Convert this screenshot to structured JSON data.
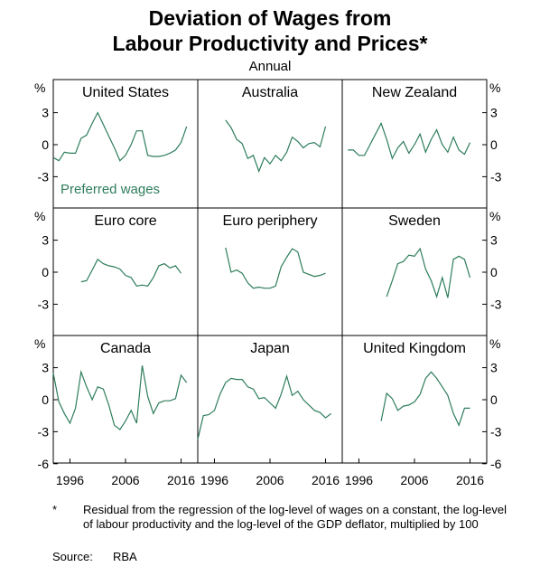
{
  "title_line1": "Deviation of Wages from",
  "title_line2": "Labour Productivity and Prices*",
  "subtitle": "Annual",
  "footnote_marker": "*",
  "footnote": "Residual from the regression of the log-level of wages on a constant, the log-level of labour productivity and the log-level of the GDP deflator, multiplied by 100",
  "source_label": "Source:",
  "source": "RBA",
  "chart_data": {
    "type": "line",
    "unit": "%",
    "line_color": "#2e7d5b",
    "ylim": [
      -6,
      6
    ],
    "y_ticks_rows_top_mid": [
      3,
      0,
      -3
    ],
    "y_ticks_bottom_row": [
      3,
      0,
      -3,
      -6
    ],
    "xlim": [
      1993,
      2019
    ],
    "x_ticks": [
      1996,
      2006,
      2016
    ],
    "legend": "Preferred wages",
    "panels": [
      {
        "name": "United States",
        "x": [
          1993,
          1994,
          1995,
          1996,
          1997,
          1998,
          1999,
          2000,
          2001,
          2002,
          2003,
          2004,
          2005,
          2006,
          2007,
          2008,
          2009,
          2010,
          2011,
          2012,
          2013,
          2014,
          2015,
          2016,
          2017
        ],
        "y": [
          -1.2,
          -1.5,
          -0.7,
          -0.8,
          -0.8,
          0.6,
          0.9,
          2.0,
          3.0,
          1.9,
          0.8,
          -0.3,
          -1.5,
          -1.0,
          0.0,
          1.3,
          1.3,
          -1.0,
          -1.1,
          -1.1,
          -1.0,
          -0.8,
          -0.5,
          0.2,
          1.7
        ]
      },
      {
        "name": "Australia",
        "x": [
          1998,
          1999,
          2000,
          2001,
          2002,
          2003,
          2004,
          2005,
          2006,
          2007,
          2008,
          2009,
          2010,
          2011,
          2012,
          2013,
          2014,
          2015,
          2016
        ],
        "y": [
          2.3,
          1.6,
          0.5,
          0.1,
          -1.3,
          -1.0,
          -2.5,
          -1.2,
          -1.8,
          -1.0,
          -1.5,
          -0.7,
          0.7,
          0.3,
          -0.3,
          0.1,
          0.2,
          -0.2,
          1.7
        ]
      },
      {
        "name": "New Zealand",
        "x": [
          1994,
          1995,
          1996,
          1997,
          1998,
          1999,
          2000,
          2001,
          2002,
          2003,
          2004,
          2005,
          2006,
          2007,
          2008,
          2009,
          2010,
          2011,
          2012,
          2013,
          2014,
          2015,
          2016
        ],
        "y": [
          -0.5,
          -0.5,
          -1.0,
          -1.0,
          0.0,
          1.0,
          2.0,
          0.5,
          -1.3,
          -0.3,
          0.3,
          -0.8,
          0.0,
          1.0,
          -0.7,
          0.5,
          1.4,
          0.0,
          -0.7,
          0.7,
          -0.5,
          -0.9,
          0.2
        ]
      },
      {
        "name": "Euro core",
        "x": [
          1998,
          1999,
          2000,
          2001,
          2002,
          2003,
          2004,
          2005,
          2006,
          2007,
          2008,
          2009,
          2010,
          2011,
          2012,
          2013,
          2014,
          2015,
          2016
        ],
        "y": [
          -0.9,
          -0.8,
          0.2,
          1.2,
          0.8,
          0.6,
          0.5,
          0.3,
          -0.3,
          -0.5,
          -1.3,
          -1.2,
          -1.3,
          -0.5,
          0.6,
          0.8,
          0.4,
          0.6,
          -0.1
        ]
      },
      {
        "name": "Euro periphery",
        "x": [
          1998,
          1999,
          2000,
          2001,
          2002,
          2003,
          2004,
          2005,
          2006,
          2007,
          2008,
          2009,
          2010,
          2011,
          2012,
          2013,
          2014,
          2015,
          2016
        ],
        "y": [
          2.3,
          0.0,
          0.2,
          -0.1,
          -1.0,
          -1.5,
          -1.4,
          -1.5,
          -1.5,
          -1.3,
          0.5,
          1.4,
          2.2,
          1.9,
          0.0,
          -0.2,
          -0.4,
          -0.3,
          -0.1
        ]
      },
      {
        "name": "Sweden",
        "x": [
          2001,
          2002,
          2003,
          2004,
          2005,
          2006,
          2007,
          2008,
          2009,
          2010,
          2011,
          2012,
          2013,
          2014,
          2015,
          2016
        ],
        "y": [
          -2.3,
          -0.8,
          0.8,
          1.0,
          1.6,
          1.5,
          2.2,
          0.3,
          -0.8,
          -2.3,
          -0.5,
          -2.4,
          1.2,
          1.5,
          1.2,
          -0.5
        ]
      },
      {
        "name": "Canada",
        "x": [
          1993,
          1994,
          1995,
          1996,
          1997,
          1998,
          1999,
          2000,
          2001,
          2002,
          2003,
          2004,
          2005,
          2006,
          2007,
          2008,
          2009,
          2010,
          2011,
          2012,
          2013,
          2014,
          2015,
          2016,
          2017
        ],
        "y": [
          2.5,
          -0.2,
          -1.3,
          -2.2,
          -0.8,
          2.6,
          1.2,
          0.0,
          1.2,
          1.0,
          -0.5,
          -2.4,
          -2.8,
          -2.0,
          -1.0,
          -2.2,
          3.2,
          0.3,
          -1.3,
          -0.3,
          -0.1,
          -0.1,
          0.1,
          2.3,
          1.6
        ]
      },
      {
        "name": "Japan",
        "x": [
          1993,
          1994,
          1995,
          1996,
          1997,
          1998,
          1999,
          2000,
          2001,
          2002,
          2003,
          2004,
          2005,
          2006,
          2007,
          2008,
          2009,
          2010,
          2011,
          2012,
          2013,
          2014,
          2015,
          2016,
          2017
        ],
        "y": [
          -3.7,
          -1.5,
          -1.4,
          -1.0,
          0.5,
          1.6,
          2.0,
          1.9,
          1.9,
          1.2,
          1.0,
          0.1,
          0.2,
          -0.3,
          -0.8,
          0.5,
          2.2,
          0.4,
          0.8,
          0.0,
          -0.5,
          -1.0,
          -1.2,
          -1.7,
          -1.3
        ]
      },
      {
        "name": "United Kingdom",
        "x": [
          2000,
          2001,
          2002,
          2003,
          2004,
          2005,
          2006,
          2007,
          2008,
          2009,
          2010,
          2011,
          2012,
          2013,
          2014,
          2015,
          2016
        ],
        "y": [
          -2.0,
          0.6,
          0.1,
          -1.0,
          -0.6,
          -0.5,
          -0.2,
          0.5,
          2.0,
          2.6,
          2.0,
          1.2,
          0.4,
          -1.3,
          -2.4,
          -0.8,
          -0.8
        ]
      }
    ]
  }
}
